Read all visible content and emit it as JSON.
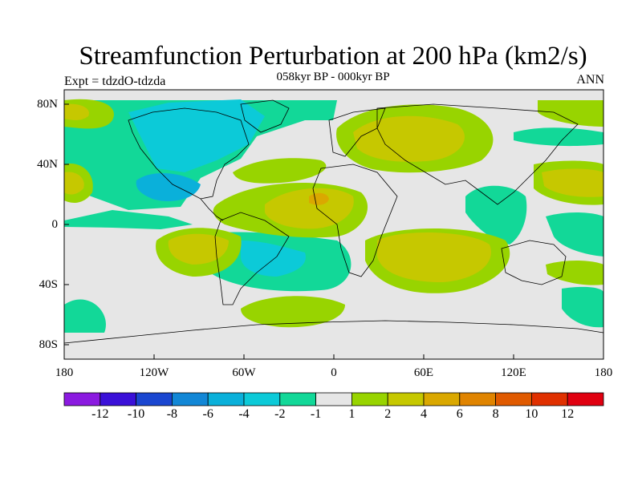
{
  "title": "Streamfunction Perturbation at 200 hPa (km2/s)",
  "subtitle": "058kyr BP - 000kyr BP",
  "left_label": "Expt = tdzdO-tdzda",
  "right_label": "ANN",
  "lat_labels": [
    "80N",
    "40N",
    "0",
    "40S",
    "80S"
  ],
  "lon_labels": [
    "180",
    "120W",
    "60W",
    "0",
    "60E",
    "120E",
    "180"
  ],
  "colorbar": {
    "colors": [
      "#8b1ae0",
      "#3a10d8",
      "#1a46d0",
      "#1287d6",
      "#0ab0da",
      "#0ccad8",
      "#12d898",
      "#e6e6e6",
      "#98d400",
      "#c6c800",
      "#daa800",
      "#e08400",
      "#e05a00",
      "#e03000",
      "#e00010"
    ],
    "labels": [
      "-12",
      "-10",
      "-8",
      "-6",
      "-4",
      "-2",
      "-1",
      "1",
      "2",
      "4",
      "6",
      "8",
      "10",
      "12"
    ]
  },
  "map": {
    "background_color": "#e6e6e6"
  }
}
